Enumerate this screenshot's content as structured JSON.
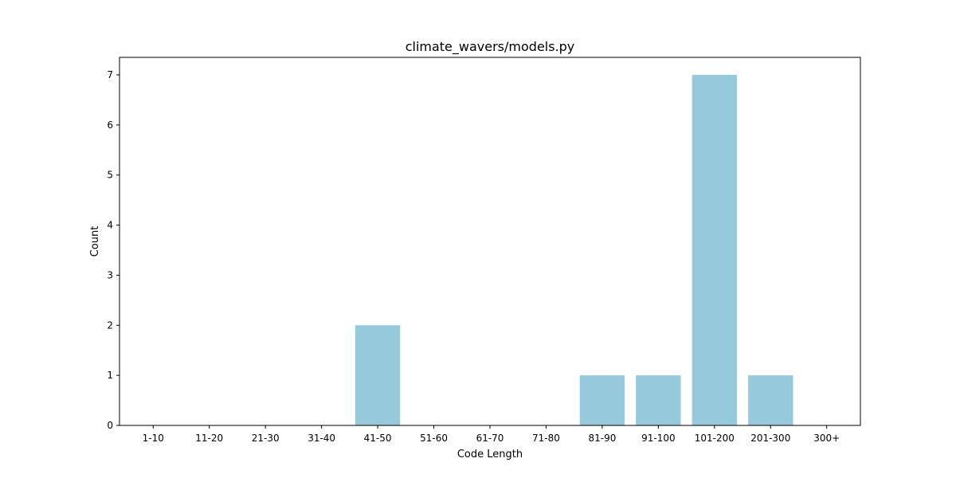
{
  "chart_data": {
    "type": "bar",
    "title": "climate_wavers/models.py",
    "xlabel": "Code Length",
    "ylabel": "Count",
    "categories": [
      "1-10",
      "11-20",
      "21-30",
      "31-40",
      "41-50",
      "51-60",
      "61-70",
      "71-80",
      "81-90",
      "91-100",
      "101-200",
      "201-300",
      "300+"
    ],
    "values": [
      0,
      0,
      0,
      0,
      2,
      0,
      0,
      0,
      1,
      1,
      7,
      1,
      0
    ],
    "ylim": [
      0,
      7.35
    ],
    "yticks": [
      0,
      1,
      2,
      3,
      4,
      5,
      6,
      7
    ],
    "grid": false,
    "bar_color": "#96c9dc"
  }
}
